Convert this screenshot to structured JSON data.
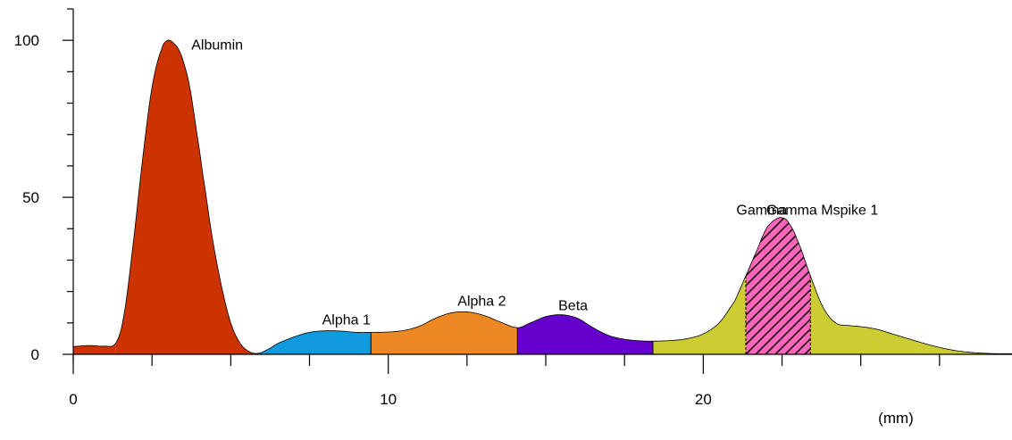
{
  "chart_data": {
    "type": "area",
    "title": "",
    "xlabel": "(mm)",
    "ylabel": "",
    "xlim": [
      0,
      29.8
    ],
    "ylim": [
      0,
      110
    ],
    "x_ticks": [
      0,
      10,
      20
    ],
    "x_ticks_minor": [
      2.5,
      5,
      7.5,
      12.5,
      15,
      17.5,
      22.5,
      25,
      27.5
    ],
    "y_ticks": [
      0,
      50,
      100
    ],
    "y_ticks_minor": [
      10,
      20,
      30,
      40,
      60,
      70,
      80,
      90,
      110
    ],
    "grid": false,
    "fractions": [
      {
        "name": "Albumin",
        "x_start": 1.35,
        "x_end": 5.85,
        "color": "#cc3300",
        "label_x": 3.75,
        "label_y": 97
      },
      {
        "name": "Alpha 1",
        "x_start": 5.85,
        "x_end": 9.45,
        "color": "#1199dd",
        "label_x": 7.9,
        "label_y": 9.5
      },
      {
        "name": "Alpha 2",
        "x_start": 9.45,
        "x_end": 14.1,
        "color": "#ee8822",
        "label_x": 12.2,
        "label_y": 15.5
      },
      {
        "name": "Beta",
        "x_start": 14.1,
        "x_end": 18.4,
        "color": "#6600cc",
        "label_x": 15.4,
        "label_y": 14
      },
      {
        "name": "Gamma",
        "x_start": 18.4,
        "x_end": 29.8,
        "color": "#cccc33",
        "label_x": 21.05,
        "label_y": 44.5
      }
    ],
    "mspikes": [
      {
        "name": "Gamma Mspike 1",
        "x_start": 21.35,
        "x_end": 23.4,
        "color": "#ff66bb",
        "hatch": true,
        "label_x": 22.0,
        "label_y": 44.5
      }
    ],
    "curve": {
      "x": [
        0,
        0.5,
        1.0,
        1.35,
        1.6,
        1.9,
        2.2,
        2.5,
        2.8,
        3.0,
        3.2,
        3.35,
        3.5,
        3.7,
        3.9,
        4.1,
        4.4,
        4.7,
        5.0,
        5.3,
        5.6,
        5.85,
        6.1,
        6.5,
        7.0,
        7.5,
        8.0,
        8.5,
        9.0,
        9.45,
        10.0,
        10.5,
        11.0,
        11.5,
        12.0,
        12.5,
        13.0,
        13.5,
        14.1,
        14.5,
        15.0,
        15.5,
        16.0,
        16.5,
        17.0,
        17.5,
        18.0,
        18.4,
        19.0,
        19.5,
        20.0,
        20.5,
        21.0,
        21.35,
        21.7,
        22.0,
        22.3,
        22.5,
        22.7,
        23.0,
        23.4,
        23.8,
        24.2,
        24.6,
        25.0,
        25.5,
        26.0,
        26.5,
        27.0,
        27.5,
        28.0,
        28.5,
        29.0,
        29.4,
        29.8
      ],
      "y": [
        2.5,
        2.8,
        2.6,
        3.5,
        12,
        35,
        62,
        85,
        97,
        100,
        99,
        97,
        93,
        85,
        72,
        58,
        38,
        22,
        10,
        3.5,
        0.8,
        0.3,
        1.2,
        3.5,
        5.5,
        7,
        7.5,
        7.4,
        7.0,
        7.0,
        7.1,
        7.6,
        9,
        11.5,
        13.2,
        13.5,
        12.5,
        10.5,
        8.5,
        10,
        12,
        12.6,
        11.5,
        8.5,
        6,
        4.8,
        4.3,
        4.2,
        4.4,
        5.0,
        6.5,
        10,
        17,
        25,
        33,
        40,
        43,
        43.5,
        42,
        36,
        25,
        15,
        10,
        9.2,
        8.8,
        8.0,
        6.5,
        5.0,
        3.5,
        2.2,
        1.2,
        0.6,
        0.3,
        0.2,
        0.2
      ]
    }
  }
}
